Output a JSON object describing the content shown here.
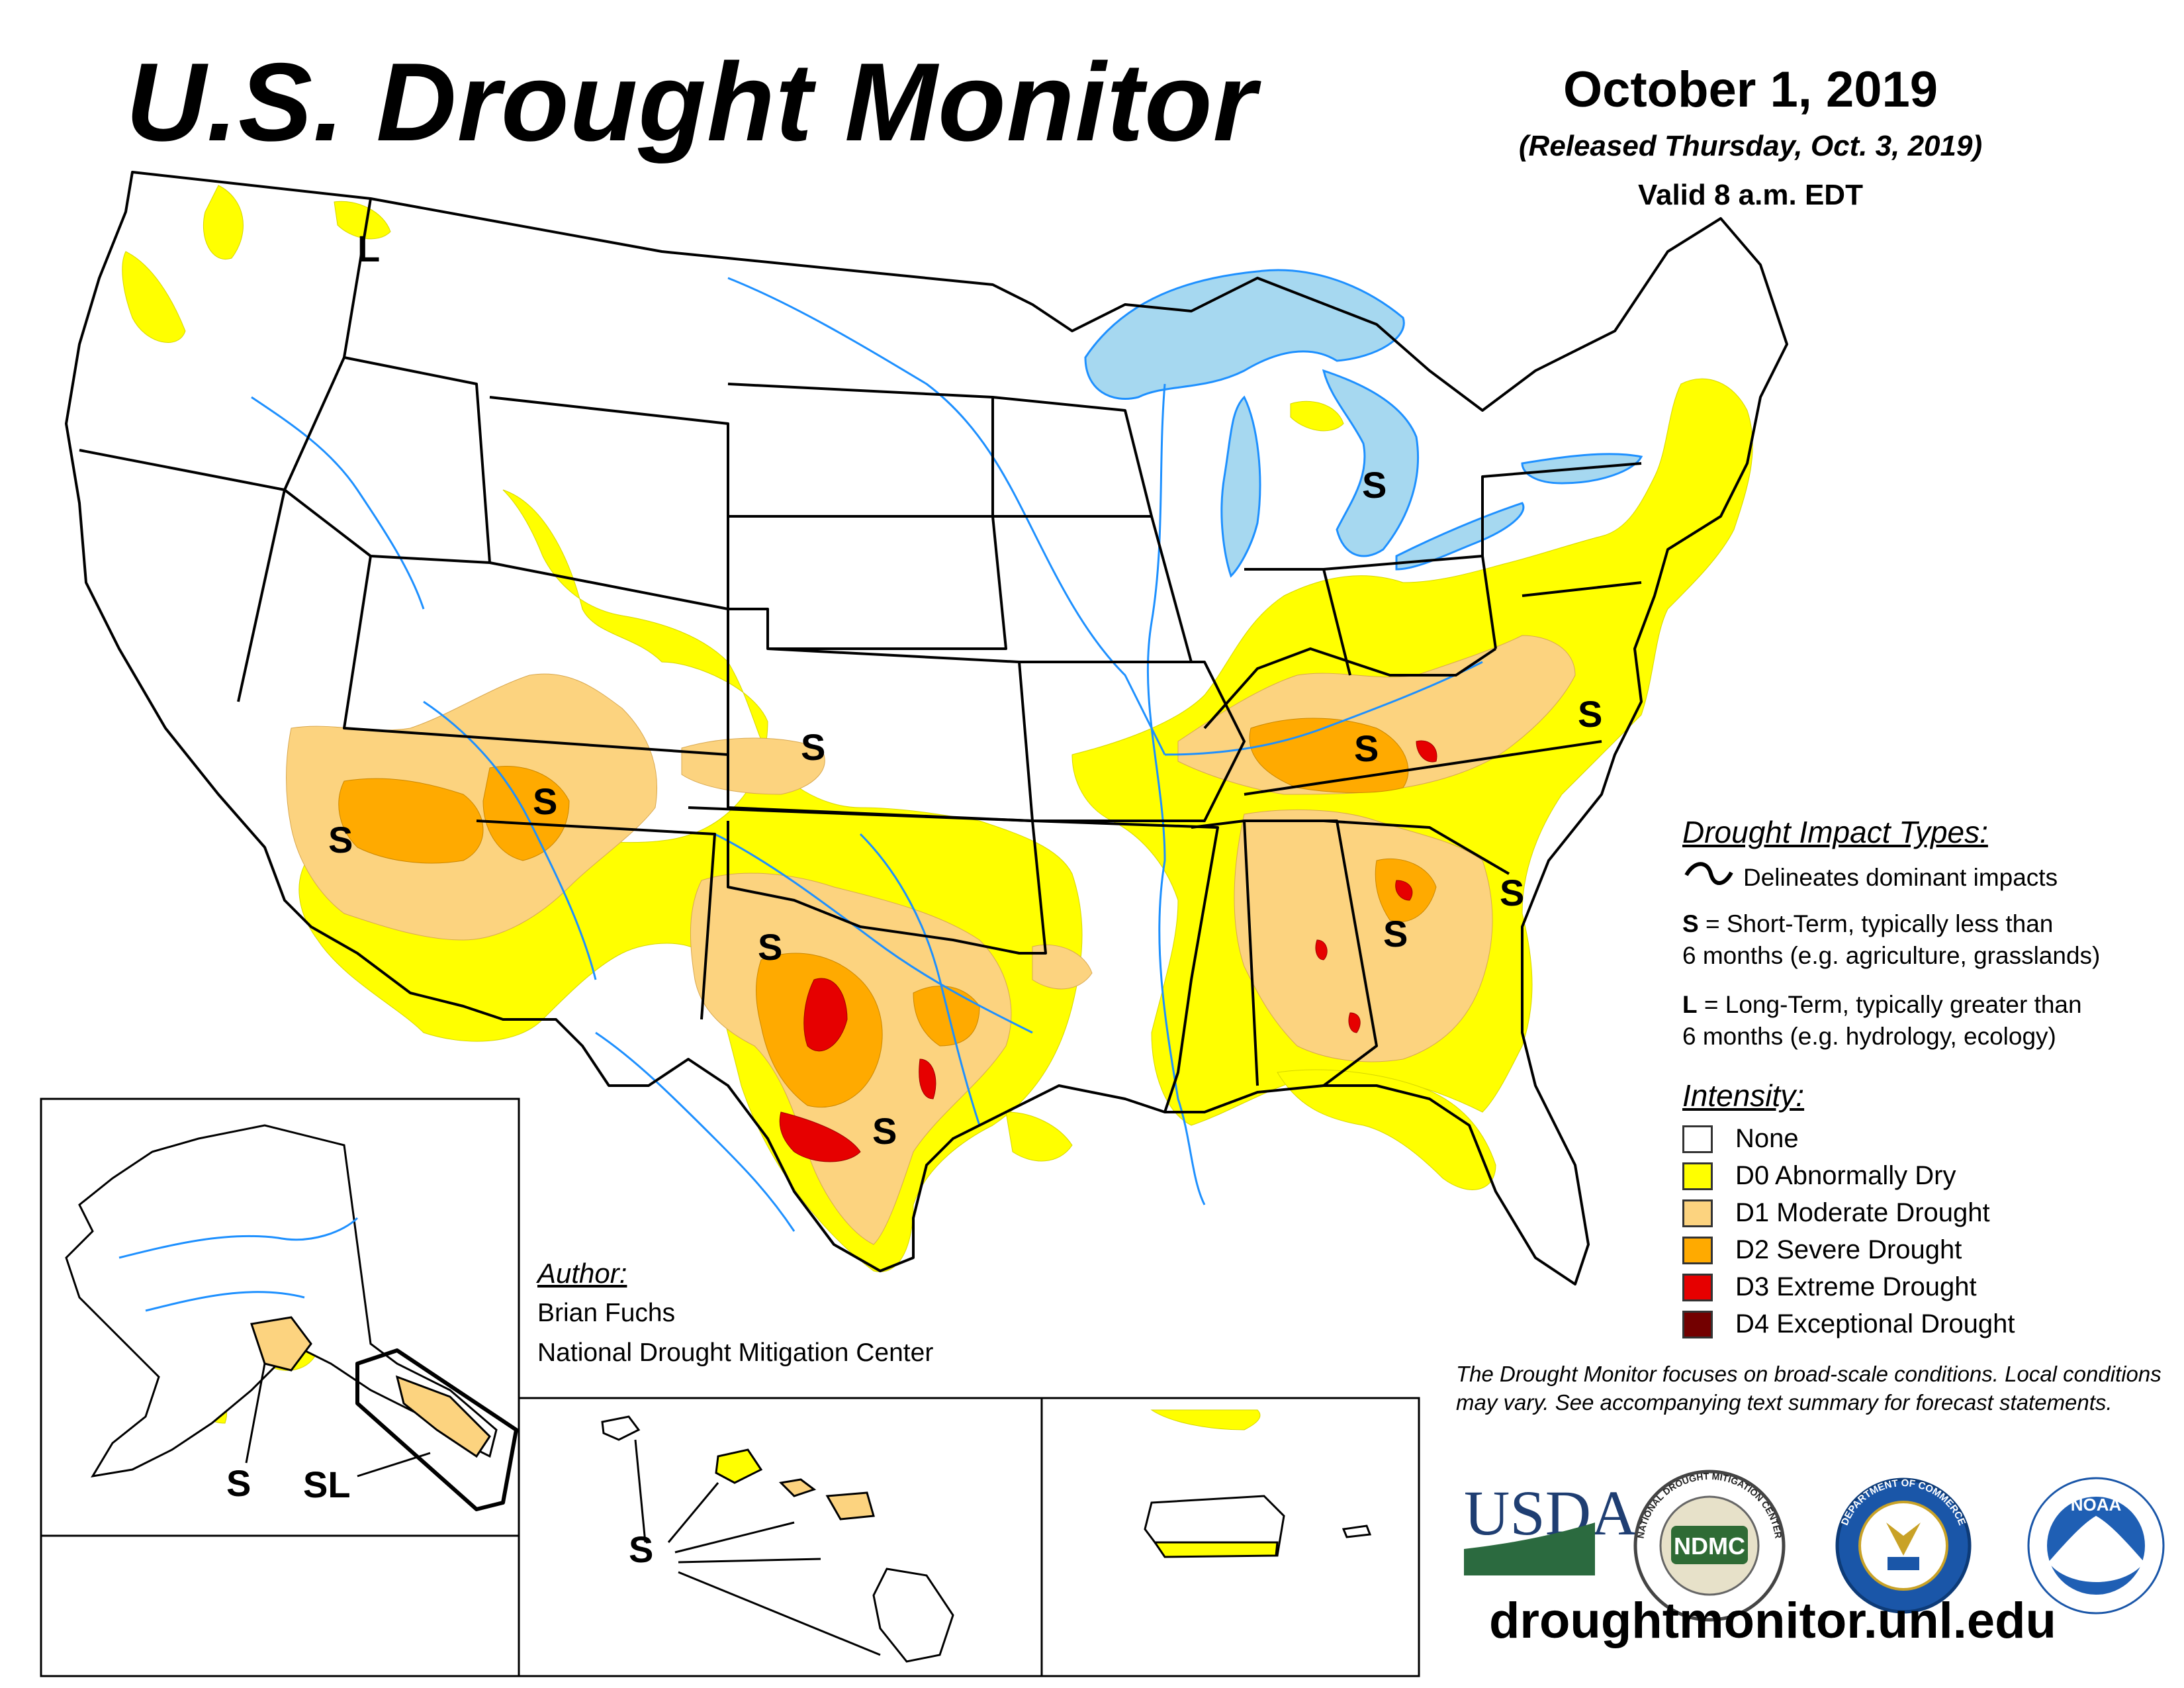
{
  "header": {
    "title": "U.S. Drought Monitor",
    "date": "October 1, 2019",
    "released": "(Released Thursday, Oct. 3, 2019)",
    "valid": "Valid 8 a.m. EDT"
  },
  "map_labels": {
    "short_term": "S",
    "long_term": "L",
    "both": "SL"
  },
  "legend": {
    "impact_heading": "Drought Impact Types:",
    "delineates": "Delineates dominant impacts",
    "s_key": "S",
    "s_line1": " = Short-Term, typically less than",
    "s_line2": "6 months (e.g. agriculture, grasslands)",
    "l_key": "L",
    "l_line1": " = Long-Term, typically greater than",
    "l_line2": "6 months (e.g. hydrology, ecology)",
    "intensity_heading": "Intensity:",
    "categories": [
      {
        "label": "None",
        "color": "#ffffff"
      },
      {
        "label": "D0 Abnormally Dry",
        "color": "#ffff00"
      },
      {
        "label": "D1 Moderate Drought",
        "color": "#fcd37f"
      },
      {
        "label": "D2 Severe Drought",
        "color": "#ffaa00"
      },
      {
        "label": "D3 Extreme Drought",
        "color": "#e60000"
      },
      {
        "label": "D4 Exceptional Drought",
        "color": "#730000"
      }
    ]
  },
  "author": {
    "heading": "Author:",
    "name": "Brian Fuchs",
    "org": "National Drought Mitigation Center"
  },
  "disclaimer": "The Drought Monitor focuses on broad-scale conditions. Local conditions may vary. See accompanying text summary for forecast statements.",
  "logos": {
    "usda": "USDA",
    "ndmc": "NDMC",
    "ndmc_ring": "NATIONAL DROUGHT MITIGATION CENTER",
    "doc_ring": "DEPARTMENT OF COMMERCE",
    "noaa": "NOAA"
  },
  "url": "droughtmonitor.unl.edu",
  "colors": {
    "water": "#a6d8f0",
    "river": "#1e90ff",
    "border": "#000000"
  }
}
